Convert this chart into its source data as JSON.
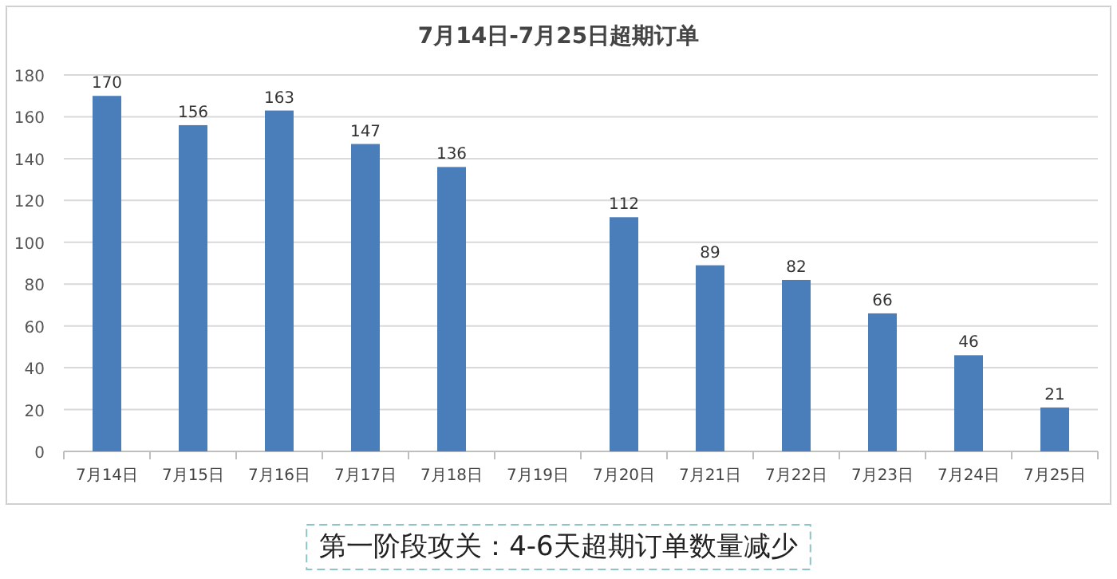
{
  "chart_data": {
    "type": "bar",
    "title": "7月14日-7月25日超期订单",
    "categories": [
      "7月14日",
      "7月15日",
      "7月16日",
      "7月17日",
      "7月18日",
      "7月19日",
      "7月20日",
      "7月21日",
      "7月22日",
      "7月23日",
      "7月24日",
      "7月25日"
    ],
    "values": [
      170,
      156,
      163,
      147,
      136,
      null,
      112,
      89,
      82,
      66,
      46,
      21
    ],
    "color": "#4a7ebb",
    "ylim": [
      0,
      180
    ],
    "yticks": [
      0,
      20,
      40,
      60,
      80,
      100,
      120,
      140,
      160,
      180
    ],
    "grid": "y",
    "data_labels": true,
    "annotations": [
      "第一阶段攻关：4-6天超期订单数量减少"
    ]
  }
}
